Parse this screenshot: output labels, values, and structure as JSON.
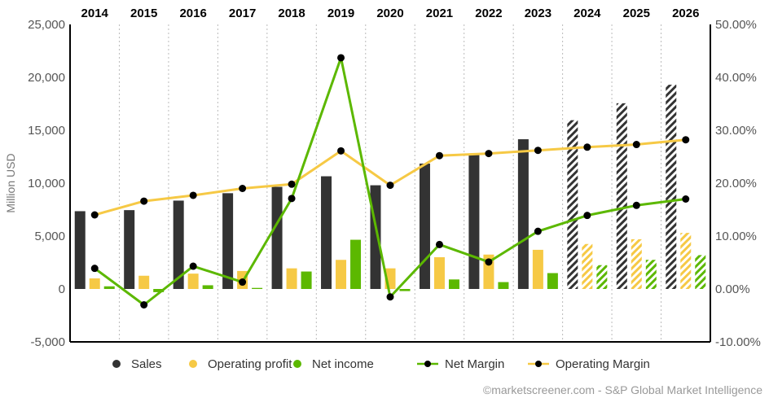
{
  "chart_data": {
    "type": "bar",
    "categories": [
      "2014",
      "2015",
      "2016",
      "2017",
      "2018",
      "2019",
      "2020",
      "2021",
      "2022",
      "2023",
      "2024",
      "2025",
      "2026"
    ],
    "forecast_from": "2024",
    "ylabel": "Million USD",
    "ylim": [
      -5000,
      25000
    ],
    "y_ticks": [
      "25,000",
      "20,000",
      "15,000",
      "10,000",
      "5,000",
      "0",
      "-5,000"
    ],
    "y_tick_values": [
      25000,
      20000,
      15000,
      10000,
      5000,
      0,
      -5000
    ],
    "y2lim": [
      -10,
      50
    ],
    "y2_ticks": [
      "50.00%",
      "40.00%",
      "30.00%",
      "20.00%",
      "10.00%",
      "0.00%",
      "-10.00%"
    ],
    "y2_tick_values": [
      50,
      40,
      30,
      20,
      10,
      0,
      -10
    ],
    "grid": "vertical dotted",
    "series": [
      {
        "name": "Sales",
        "kind": "bar",
        "color": "#333333",
        "values": [
          7350,
          7450,
          8350,
          9050,
          9650,
          10650,
          9800,
          11850,
          12800,
          14150,
          15950,
          17550,
          19300
        ]
      },
      {
        "name": "Operating profit",
        "kind": "bar",
        "color": "#f6c945",
        "values": [
          1000,
          1250,
          1450,
          1700,
          1950,
          2750,
          1950,
          3000,
          3250,
          3700,
          4250,
          4700,
          5300
        ]
      },
      {
        "name": "Net income",
        "kind": "bar",
        "color": "#5cb800",
        "values": [
          250,
          -300,
          350,
          100,
          1650,
          4650,
          -200,
          900,
          650,
          1500,
          2250,
          2750,
          3200
        ]
      },
      {
        "name": "Net Margin",
        "kind": "line",
        "axis": "right",
        "color": "#5cb800",
        "values": [
          3.9,
          -3.0,
          4.3,
          1.3,
          17.1,
          43.7,
          -1.5,
          8.4,
          5.1,
          10.9,
          13.9,
          15.8,
          17.0
        ]
      },
      {
        "name": "Operating Margin",
        "kind": "line",
        "axis": "right",
        "color": "#f6c945",
        "values": [
          14.0,
          16.6,
          17.7,
          19.0,
          19.8,
          26.1,
          19.6,
          25.2,
          25.6,
          26.2,
          26.8,
          27.3,
          28.2
        ]
      }
    ],
    "legend": [
      {
        "label": "Sales",
        "marker": "dot",
        "color": "#333333"
      },
      {
        "label": "Operating profit",
        "marker": "dot",
        "color": "#f6c945"
      },
      {
        "label": "Net income",
        "marker": "dot",
        "color": "#5cb800"
      },
      {
        "label": "Net Margin",
        "marker": "line",
        "color": "#5cb800"
      },
      {
        "label": "Operating Margin",
        "marker": "line",
        "color": "#f6c945"
      }
    ],
    "legend_position": "bottom",
    "source": "©marketscreener.com - S&P Global Market Intelligence"
  }
}
